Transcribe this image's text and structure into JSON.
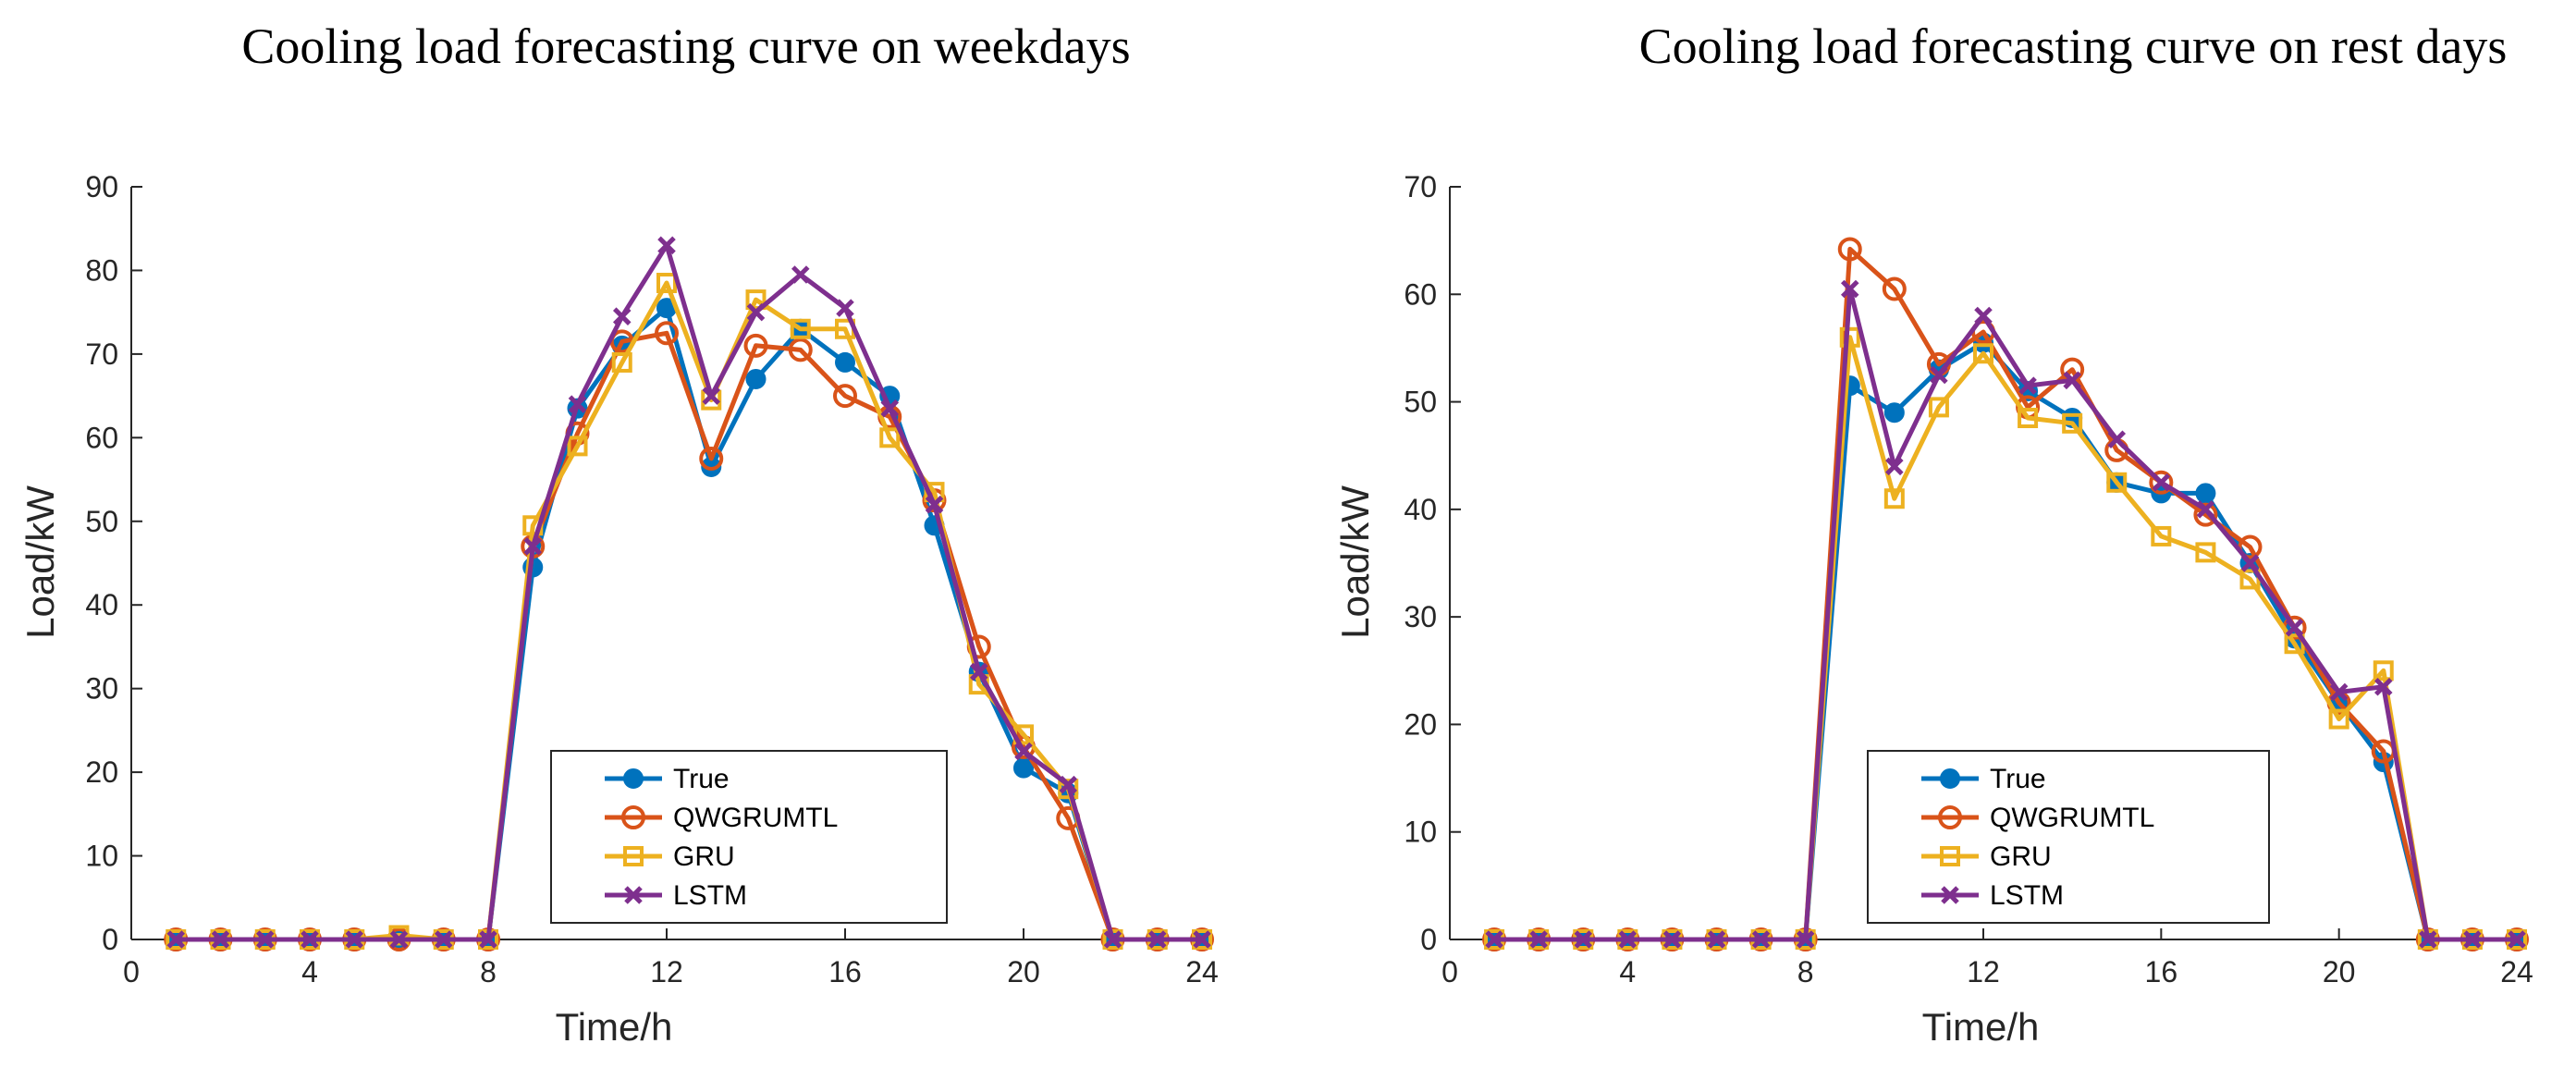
{
  "chart_data": [
    {
      "type": "line",
      "title": "Cooling load forecasting curve on weekdays",
      "xlabel": "Time/h",
      "ylabel": "Load/kW",
      "xlim": [
        0,
        24
      ],
      "ylim": [
        0,
        90
      ],
      "xticks": [
        0,
        4,
        8,
        12,
        16,
        20,
        24
      ],
      "yticks": [
        0,
        10,
        20,
        30,
        40,
        50,
        60,
        70,
        80,
        90
      ],
      "grid": false,
      "legend_position": "bottom-center",
      "x": [
        1,
        2,
        3,
        4,
        5,
        6,
        7,
        8,
        9,
        10,
        11,
        12,
        13,
        14,
        15,
        16,
        17,
        18,
        19,
        20,
        21,
        22,
        23,
        24
      ],
      "series": [
        {
          "name": "True",
          "marker": "circle-filled",
          "color": "#0072BD",
          "values": [
            0,
            0,
            0,
            0,
            0,
            0,
            0,
            0,
            44.5,
            63.5,
            71,
            75.5,
            56.5,
            67,
            73,
            69,
            65,
            49.5,
            32,
            20.5,
            17.5,
            0,
            0,
            0
          ]
        },
        {
          "name": "QWGRUMTL",
          "marker": "circle-open",
          "color": "#D95319",
          "values": [
            0,
            0,
            0,
            0,
            0,
            0,
            0,
            0,
            47,
            60.5,
            71.5,
            72.5,
            57.5,
            71,
            70.5,
            65,
            62.5,
            52.5,
            35,
            23,
            14.5,
            0,
            0,
            0
          ]
        },
        {
          "name": "GRU",
          "marker": "square-open",
          "color": "#EDB120",
          "values": [
            0,
            0,
            0,
            0,
            0,
            0.5,
            0,
            0,
            49.5,
            59,
            69,
            78.5,
            64.5,
            76.5,
            73,
            73,
            60,
            53.5,
            30.5,
            24.5,
            18,
            0,
            0,
            0
          ]
        },
        {
          "name": "LSTM",
          "marker": "x",
          "color": "#7E2F8E",
          "values": [
            0,
            0,
            0,
            0,
            0,
            0,
            0,
            0,
            47,
            64,
            74.5,
            83,
            65,
            75,
            79.5,
            75.5,
            63.5,
            52,
            32,
            22.5,
            18.5,
            0,
            0,
            0
          ]
        }
      ]
    },
    {
      "type": "line",
      "title": "Cooling load forecasting curve on rest days",
      "xlabel": "Time/h",
      "ylabel": "Load/kW",
      "xlim": [
        0,
        24
      ],
      "ylim": [
        0,
        70
      ],
      "xticks": [
        0,
        4,
        8,
        12,
        16,
        20,
        24
      ],
      "yticks": [
        0,
        10,
        20,
        30,
        40,
        50,
        60,
        70
      ],
      "grid": false,
      "legend_position": "bottom-center",
      "x": [
        1,
        2,
        3,
        4,
        5,
        6,
        7,
        8,
        9,
        10,
        11,
        12,
        13,
        14,
        15,
        16,
        17,
        18,
        19,
        20,
        21,
        22,
        23,
        24
      ],
      "series": [
        {
          "name": "True",
          "marker": "circle-filled",
          "color": "#0072BD",
          "values": [
            0,
            0,
            0,
            0,
            0,
            0,
            0,
            0,
            51.5,
            49,
            53,
            55.5,
            51,
            48.5,
            42.5,
            41.5,
            41.5,
            35,
            28,
            22,
            16.5,
            0,
            0,
            0
          ]
        },
        {
          "name": "QWGRUMTL",
          "marker": "circle-open",
          "color": "#D95319",
          "values": [
            0,
            0,
            0,
            0,
            0,
            0,
            0,
            0,
            64.2,
            60.5,
            53.5,
            56.5,
            49.5,
            53,
            45.5,
            42.5,
            39.5,
            36.5,
            29,
            22,
            17.5,
            0,
            0,
            0
          ]
        },
        {
          "name": "GRU",
          "marker": "square-open",
          "color": "#EDB120",
          "values": [
            0,
            0,
            0,
            0,
            0,
            0,
            0,
            0,
            56,
            41,
            49.5,
            54.5,
            48.5,
            48,
            42.5,
            37.5,
            36,
            33.5,
            27.5,
            20.5,
            25,
            0,
            0,
            0
          ]
        },
        {
          "name": "LSTM",
          "marker": "x",
          "color": "#7E2F8E",
          "values": [
            0,
            0,
            0,
            0,
            0,
            0,
            0,
            0,
            60.5,
            44,
            52.5,
            58,
            51.5,
            52,
            46.5,
            42.5,
            40,
            35,
            29,
            23,
            23.5,
            0,
            0,
            0
          ]
        }
      ]
    }
  ]
}
